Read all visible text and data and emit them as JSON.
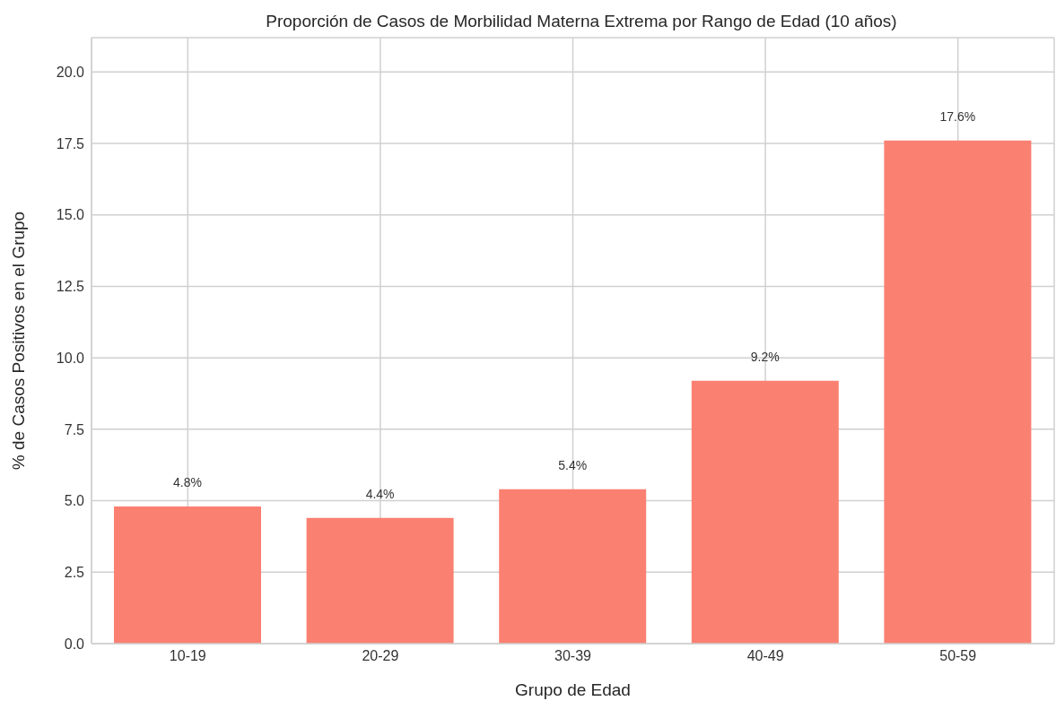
{
  "chart_data": {
    "type": "bar",
    "title": "Proporción de Casos de Morbilidad Materna Extrema por Rango de Edad (10 años)",
    "xlabel": "Grupo de Edad",
    "ylabel": "% de Casos Positivos en el Grupo",
    "categories": [
      "10-19",
      "20-29",
      "30-39",
      "40-49",
      "50-59"
    ],
    "values": [
      4.8,
      4.4,
      5.4,
      9.2,
      17.6
    ],
    "value_labels": [
      "4.8%",
      "4.4%",
      "5.4%",
      "9.2%",
      "17.6%"
    ],
    "color": "#fa8072",
    "ylim": [
      0,
      21.2
    ],
    "yticks": [
      {
        "value": 0,
        "label": "0.0"
      },
      {
        "value": 2.5,
        "label": "2.5"
      },
      {
        "value": 5,
        "label": "5.0"
      },
      {
        "value": 7.5,
        "label": "7.5"
      },
      {
        "value": 10,
        "label": "10.0"
      },
      {
        "value": 12.5,
        "label": "12.5"
      },
      {
        "value": 15,
        "label": "15.0"
      },
      {
        "value": 17.5,
        "label": "17.5"
      },
      {
        "value": 20,
        "label": "20.0"
      }
    ],
    "grid": true
  }
}
